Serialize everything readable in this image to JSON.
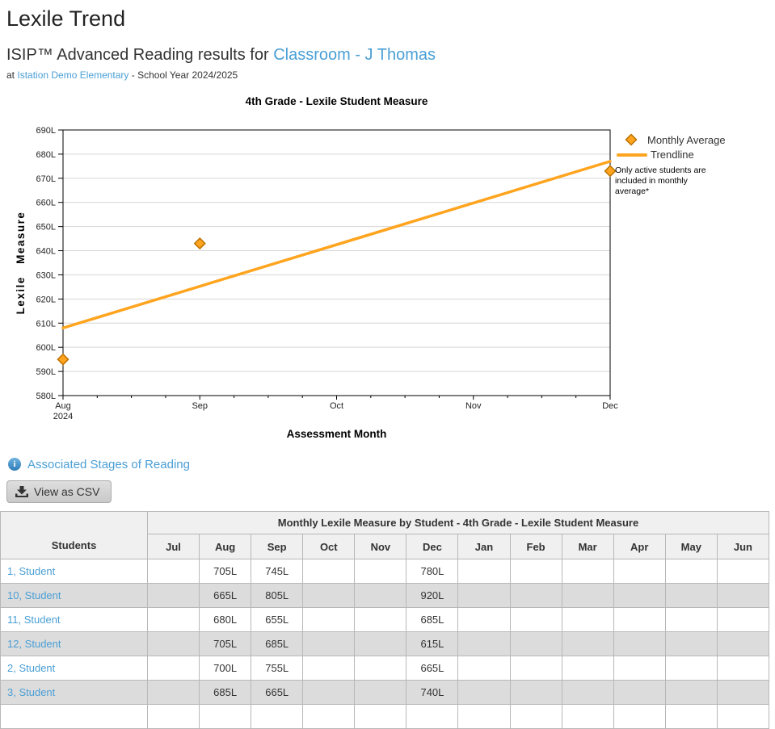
{
  "page": {
    "title": "Lexile Trend",
    "subtitle_prefix": "ISIP™ Advanced Reading results for",
    "subtitle_link": "Classroom - J Thomas",
    "subline_prefix": "at",
    "subline_link": "Istation Demo Elementary",
    "subline_suffix": "- School Year 2024/2025"
  },
  "links": {
    "associated_stages": "Associated Stages of Reading",
    "view_csv": "View as CSV"
  },
  "chart_data": {
    "type": "scatter",
    "title": "4th Grade - Lexile Student Measure",
    "xlabel": "Assessment Month",
    "ylabel": "Lexile Measure",
    "ylim": [
      580,
      690
    ],
    "y_tick_step": 10,
    "y_tick_suffix": "L",
    "x_categories": [
      "Aug",
      "Sep",
      "Oct",
      "Nov",
      "Dec"
    ],
    "x_first_sublabel": "2024",
    "grid": true,
    "legend_position": "top-right-outside",
    "series": [
      {
        "name": "Monthly Average",
        "type": "scatter",
        "marker": "diamond",
        "points": [
          {
            "x": "Aug",
            "y": 595
          },
          {
            "x": "Sep",
            "y": 643
          },
          {
            "x": "Dec",
            "y": 673
          }
        ]
      },
      {
        "name": "Trendline",
        "type": "line",
        "start": {
          "x": "Aug",
          "y": 608
        },
        "end": {
          "x": "Dec",
          "y": 677
        }
      }
    ],
    "note_lines": [
      "Only active students are",
      "included in monthly",
      "average*"
    ],
    "colors": {
      "accent": "#FFA41E",
      "marker_border": "#BA7100",
      "grid": "#D6D6D6",
      "axis": "#000000",
      "text": "#222222"
    }
  },
  "table": {
    "group_header": "Monthly Lexile Measure by Student - 4th Grade - Lexile Student Measure",
    "students_header": "Students",
    "months": [
      "Jul",
      "Aug",
      "Sep",
      "Oct",
      "Nov",
      "Dec",
      "Jan",
      "Feb",
      "Mar",
      "Apr",
      "May",
      "Jun"
    ],
    "rows": [
      {
        "name": "1, Student",
        "values": {
          "Aug": "705L",
          "Sep": "745L",
          "Dec": "780L"
        }
      },
      {
        "name": "10, Student",
        "values": {
          "Aug": "665L",
          "Sep": "805L",
          "Dec": "920L"
        }
      },
      {
        "name": "11, Student",
        "values": {
          "Aug": "680L",
          "Sep": "655L",
          "Dec": "685L"
        }
      },
      {
        "name": "12, Student",
        "values": {
          "Aug": "705L",
          "Sep": "685L",
          "Dec": "615L"
        }
      },
      {
        "name": "2, Student",
        "values": {
          "Aug": "700L",
          "Sep": "755L",
          "Dec": "665L"
        }
      },
      {
        "name": "3, Student",
        "values": {
          "Aug": "685L",
          "Sep": "665L",
          "Dec": "740L"
        }
      }
    ]
  },
  "colors": {
    "link_blue": "#4A9FD6",
    "heading_text": "#222222",
    "body_text": "#333333",
    "table_header_bg": "#F0F0F0",
    "table_alt_row_bg": "#DCDCDC",
    "table_border": "#B8B8B8",
    "button_bg": "#D6D6D6",
    "info_icon_blue": "#3E8FC7"
  }
}
